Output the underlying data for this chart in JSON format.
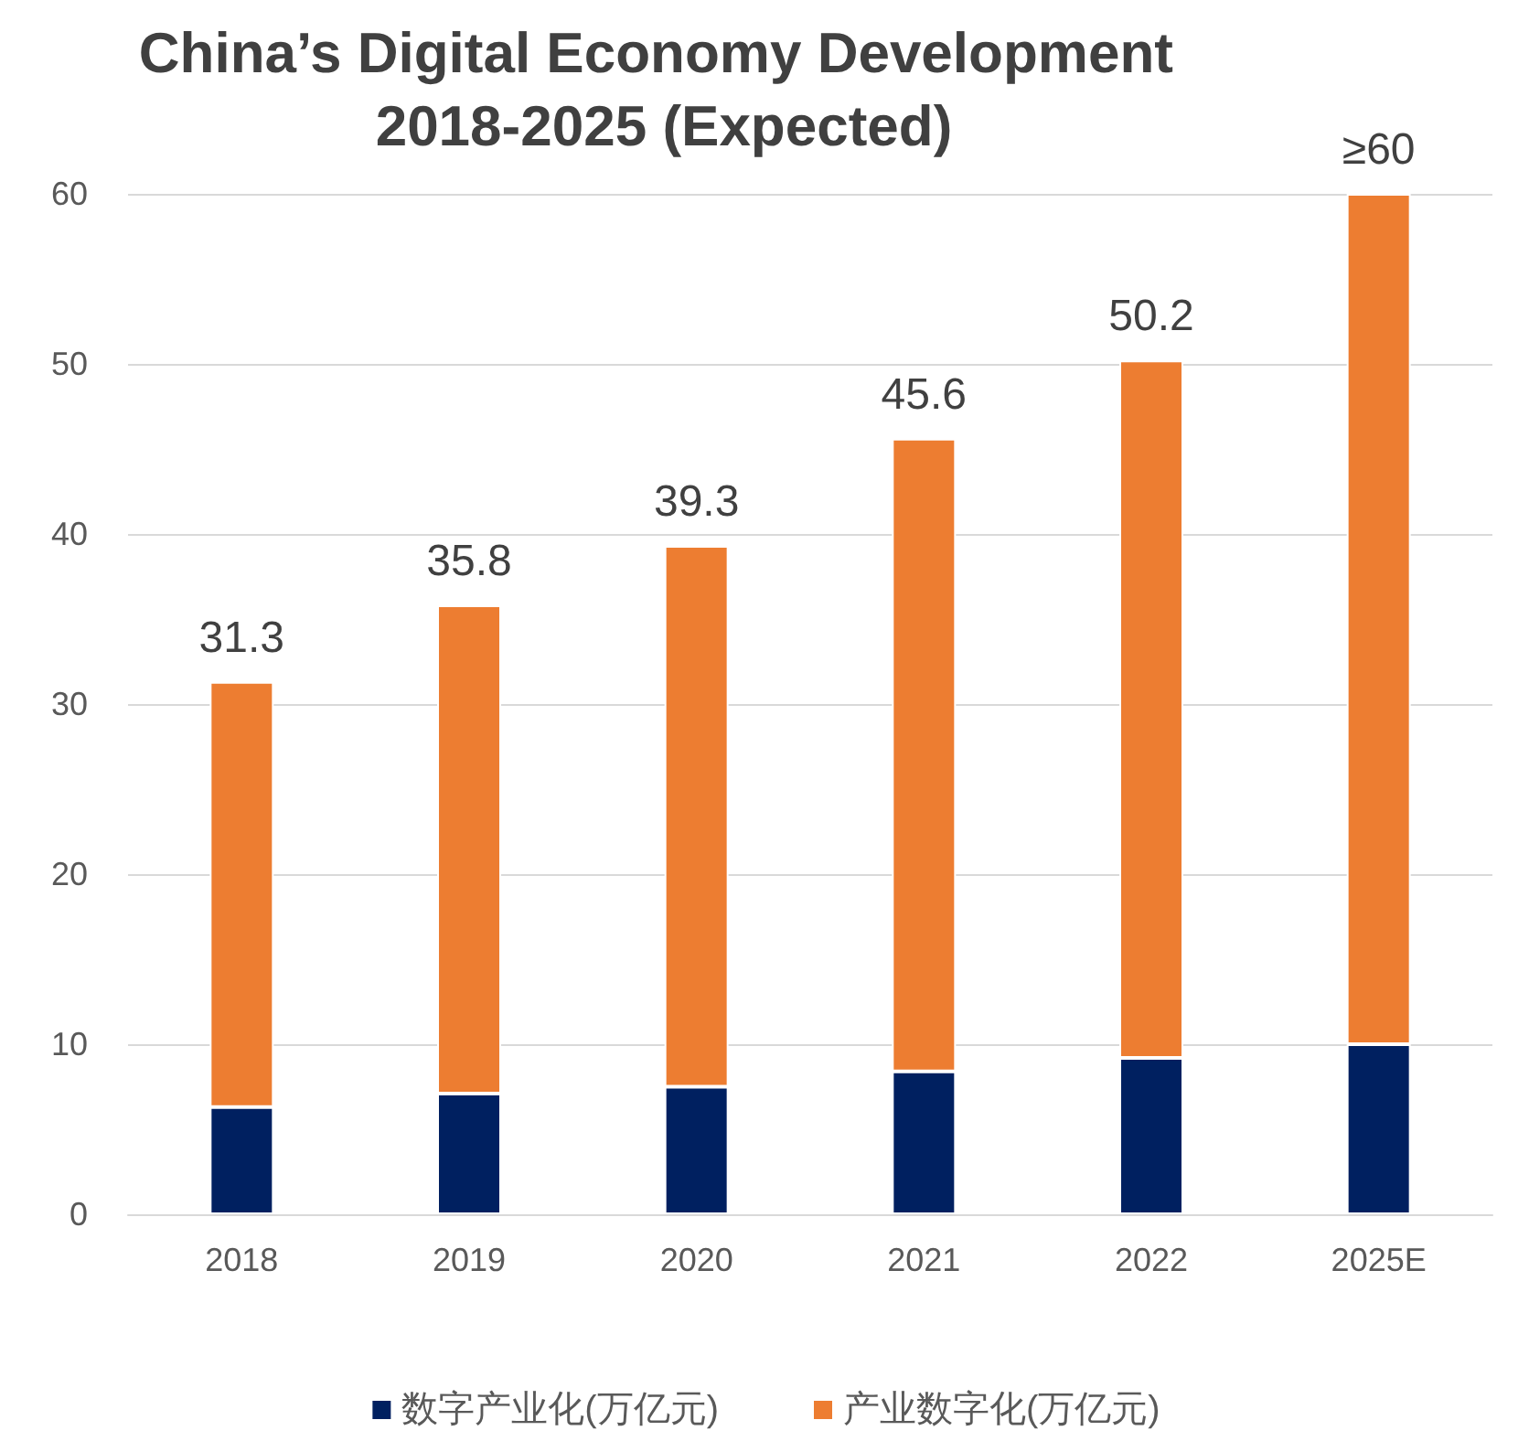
{
  "chart_data": {
    "type": "bar",
    "title": "China’s Digital Economy Development 2018-2025 (Expected)",
    "categories": [
      "2018",
      "2019",
      "2020",
      "2021",
      "2022",
      "2025E"
    ],
    "stacked": true,
    "series": [
      {
        "name": "数字产业化(万亿元)",
        "color": "#002060",
        "values": [
          6.3,
          7.1,
          7.5,
          8.4,
          9.2,
          10.0
        ]
      },
      {
        "name": "产业数字化(万亿元)",
        "color": "#ed7d31",
        "values": [
          25.0,
          28.7,
          31.8,
          37.2,
          41.0,
          50.0
        ]
      }
    ],
    "totals": [
      "31.3",
      "35.8",
      "39.3",
      "45.6",
      "50.2",
      "≥60"
    ],
    "ylim": [
      0,
      60
    ],
    "yticks": [
      0,
      10,
      20,
      30,
      40,
      50,
      60
    ],
    "grid": "y",
    "legend": "bottom"
  }
}
